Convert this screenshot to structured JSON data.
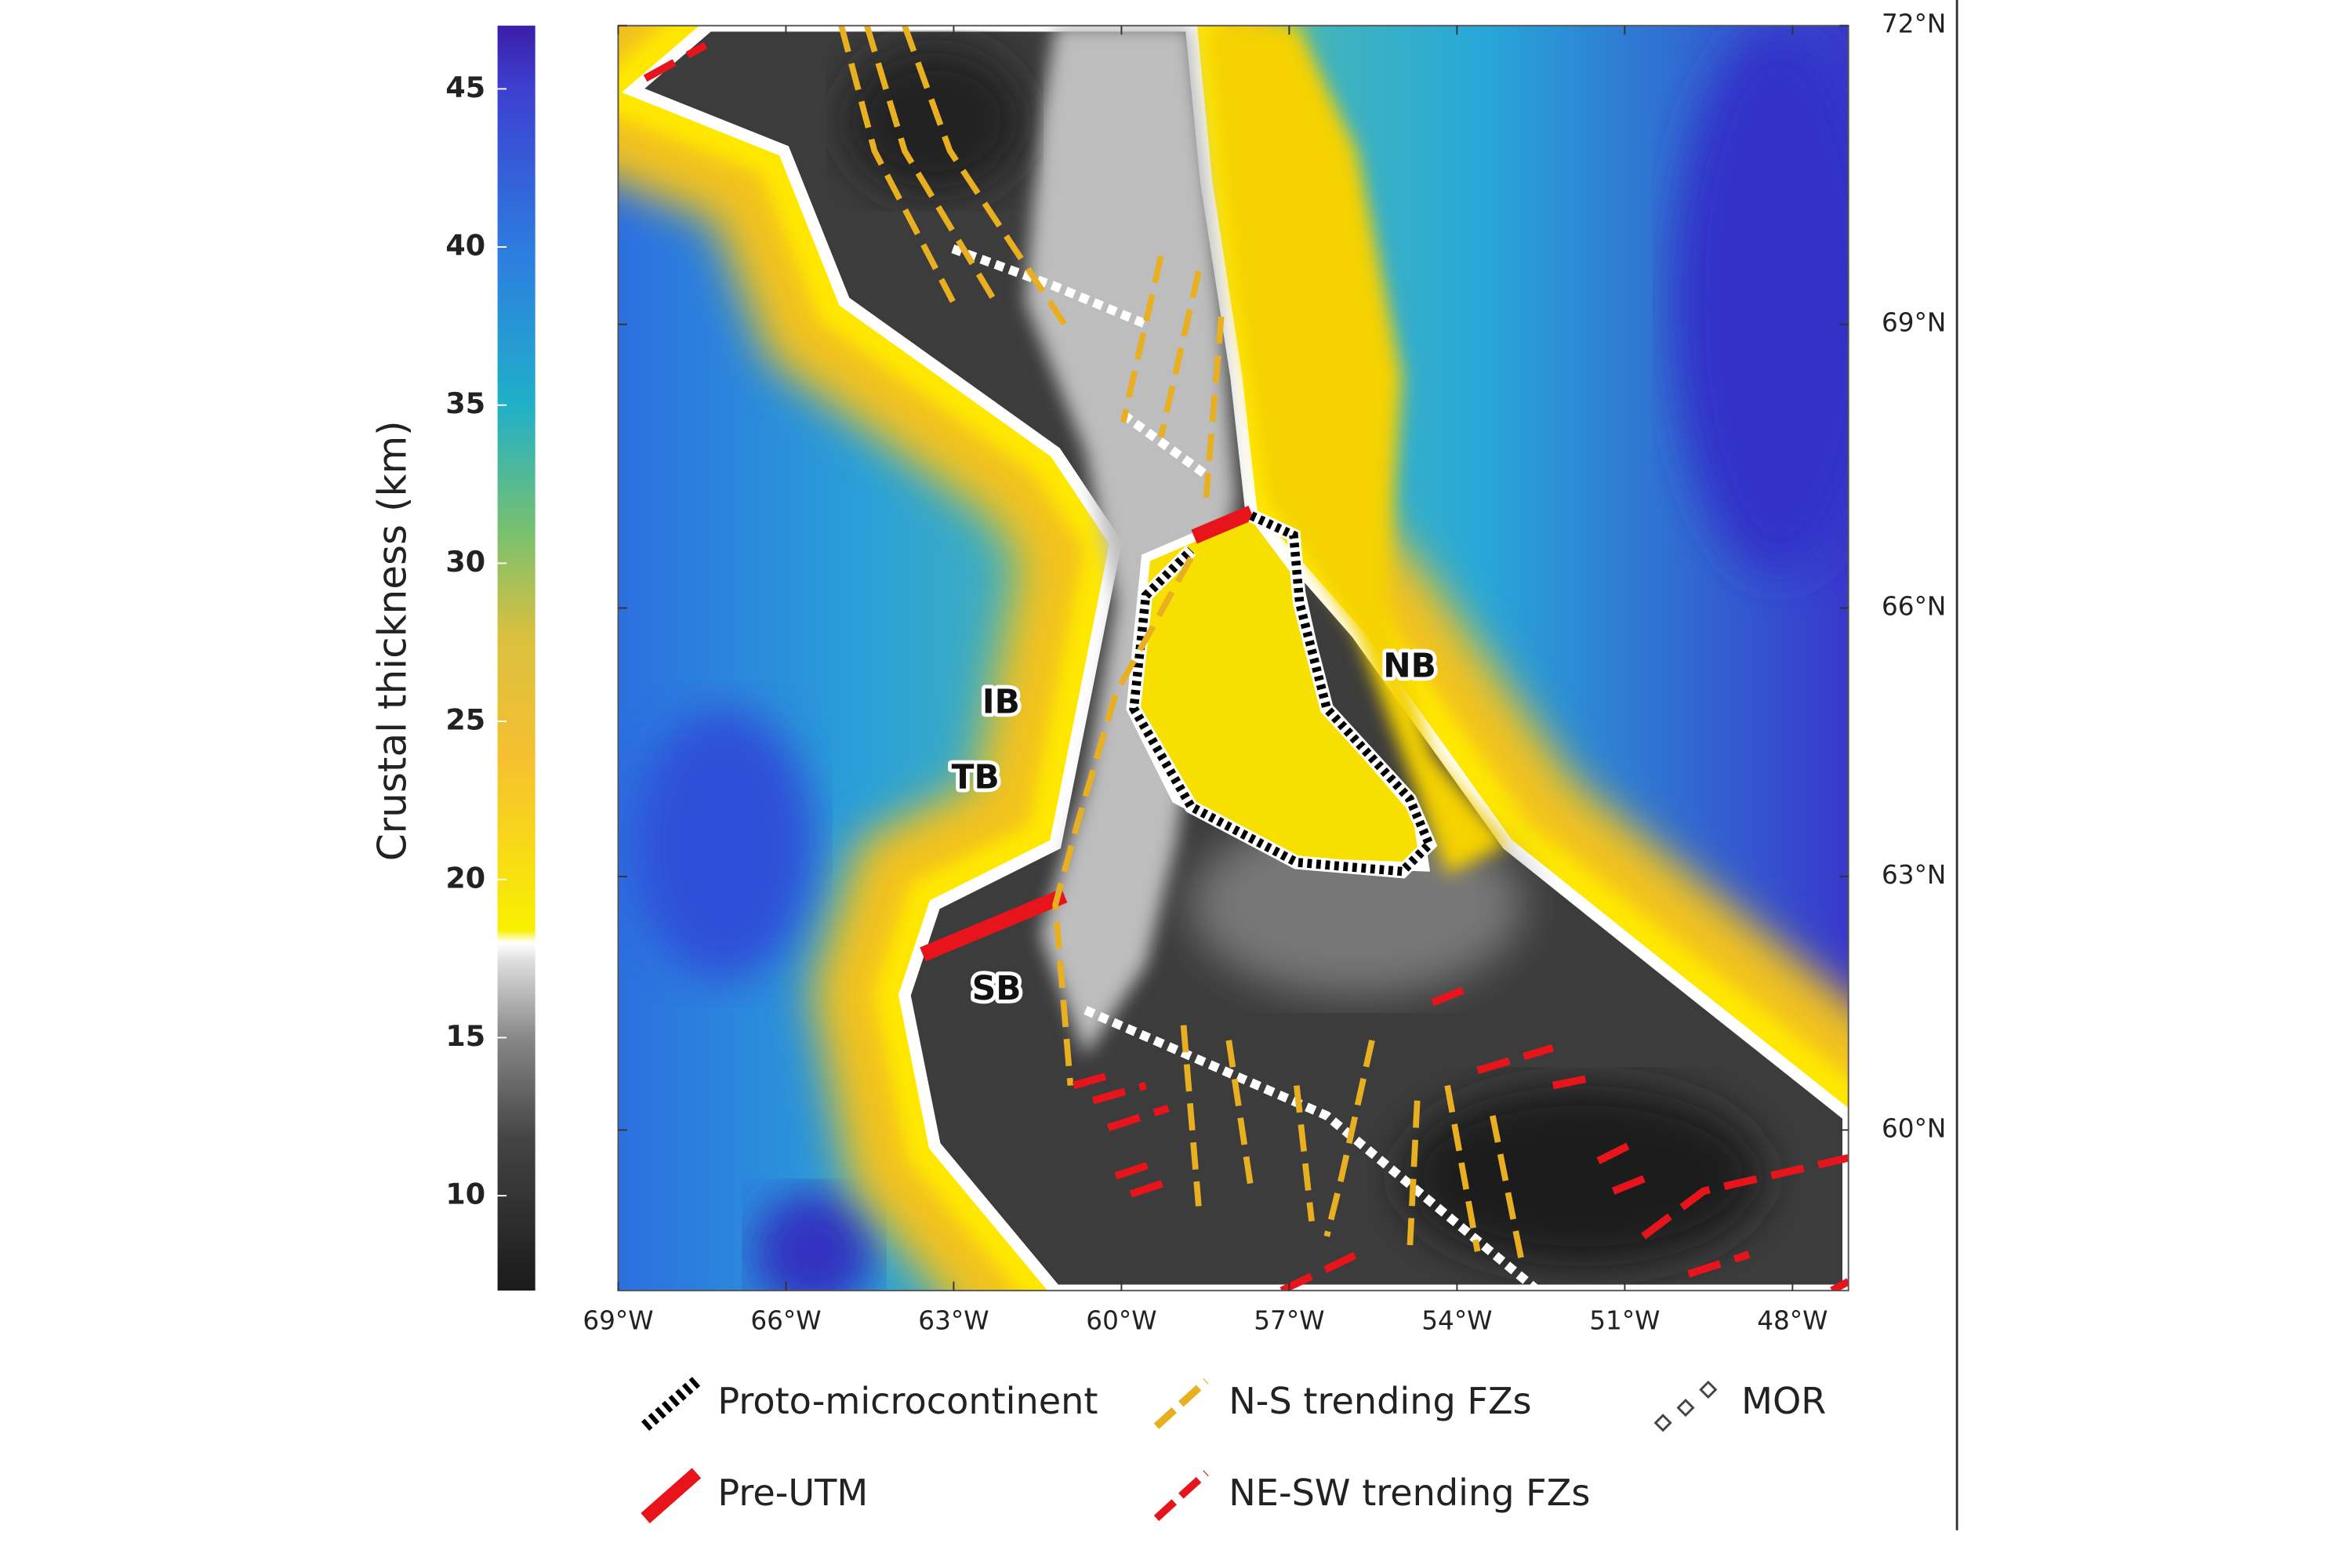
{
  "map": {
    "colorbar": {
      "label": "Crustal thickness (km)",
      "lim": [
        7,
        47
      ],
      "ticks": [
        10,
        15,
        20,
        25,
        30,
        35,
        40,
        45
      ]
    },
    "xaxis": {
      "lim": [
        -69,
        -47
      ],
      "ticks": [
        {
          "value": -69,
          "label": "69°W"
        },
        {
          "value": -66,
          "label": "66°W"
        },
        {
          "value": -63,
          "label": "63°W"
        },
        {
          "value": -60,
          "label": "60°W"
        },
        {
          "value": -57,
          "label": "57°W"
        },
        {
          "value": -54,
          "label": "54°W"
        },
        {
          "value": -51,
          "label": "51°W"
        },
        {
          "value": -48,
          "label": "48°W"
        }
      ]
    },
    "yaxis": {
      "lim": [
        58,
        72
      ],
      "ticks": [
        {
          "value": 72,
          "label": "72°N"
        },
        {
          "value": 69,
          "label": "69°N"
        },
        {
          "value": 66,
          "label": "66°N"
        },
        {
          "value": 63,
          "label": "63°N"
        },
        {
          "value": 60,
          "label": "60°N"
        }
      ]
    },
    "region_labels": [
      "IB",
      "TB",
      "SB",
      "NB"
    ],
    "legend": [
      "Proto-microcontinent",
      "N-S trending FZs",
      "MOR",
      "Pre-UTM",
      "NE-SW trending FZs"
    ]
  }
}
